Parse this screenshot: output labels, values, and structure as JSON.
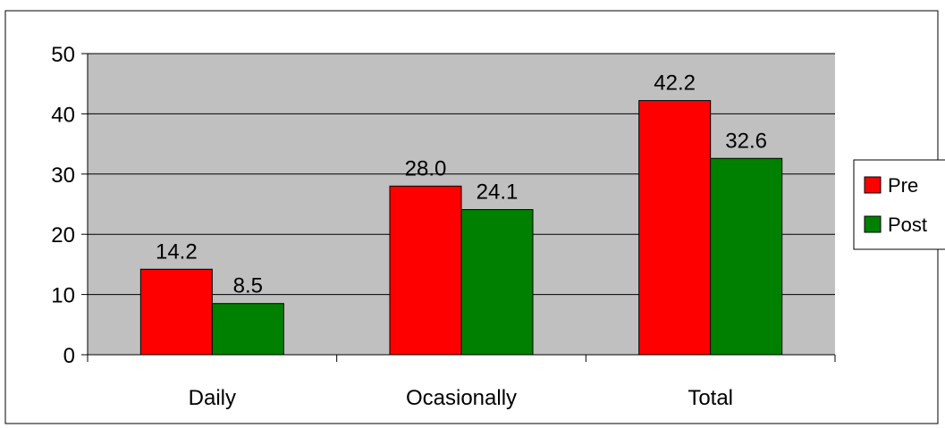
{
  "chart_data": {
    "type": "bar",
    "categories": [
      "Daily",
      "Ocasionally",
      "Total"
    ],
    "series": [
      {
        "name": "Pre",
        "values": [
          14.2,
          28.0,
          42.2
        ],
        "labels": [
          "14.2",
          "28.0",
          "42.2"
        ]
      },
      {
        "name": "Post",
        "values": [
          8.5,
          24.1,
          32.6
        ],
        "labels": [
          "8.5",
          "24.1",
          "32.6"
        ]
      }
    ],
    "y_ticks": [
      "0",
      "10",
      "20",
      "30",
      "40",
      "50"
    ],
    "ylim": [
      0,
      50
    ],
    "grid": true,
    "legend_position": "right"
  },
  "colors": {
    "plot_background": "#c0c0c0",
    "pre": "#ff0000",
    "post": "#008000",
    "axis": "#000000"
  }
}
